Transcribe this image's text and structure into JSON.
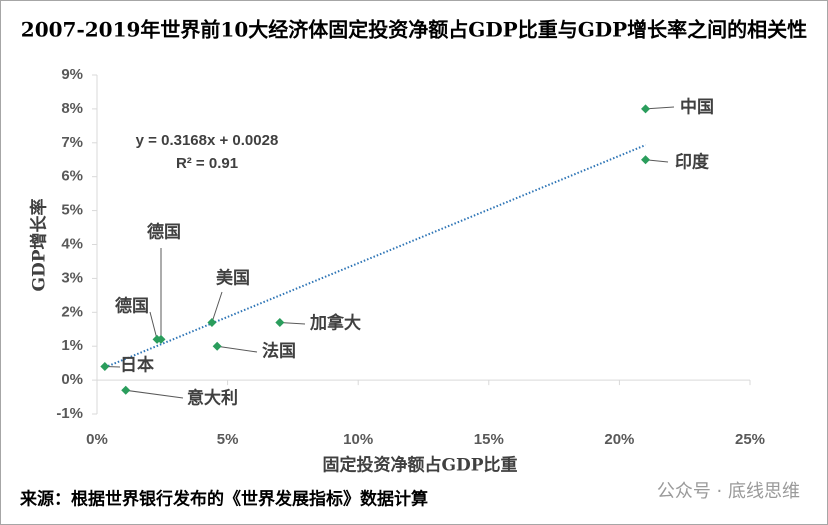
{
  "chart_data": {
    "type": "scatter",
    "title": "2007-2019年世界前10大经济体固定投资净额占GDP比重与GDP增长率之间的相关性",
    "x_label": "固定投资净额占GDP比重",
    "y_label": "GDP增长率",
    "source": "来源：根据世界银行发布的《世界发展指标》数据计算",
    "watermark": "公众号 · 底线思维",
    "color": "#2a9d5c",
    "point_labels": [
      "中国",
      "印度",
      "德国",
      "德国",
      "美国",
      "加拿大",
      "法国",
      "日本",
      "意大利"
    ],
    "x": [
      21.0,
      21.0,
      2.3,
      2.45,
      4.4,
      7.0,
      4.6,
      0.3,
      1.1
    ],
    "y": [
      8.0,
      6.5,
      1.2,
      1.2,
      1.7,
      1.7,
      1.0,
      0.4,
      -0.3
    ],
    "trendline": {
      "slope": 0.3168,
      "intercept": 0.28,
      "equation": "y = 0.3168x + 0.0028",
      "r2_label": "R² = 0.91",
      "color": "#2e75b6"
    },
    "xlim": [
      0,
      25
    ],
    "ylim": [
      -1,
      9
    ],
    "xticks": [
      {
        "value": 0,
        "label": "0%"
      },
      {
        "value": 5,
        "label": "5%"
      },
      {
        "value": 10,
        "label": "10%"
      },
      {
        "value": 15,
        "label": "15%"
      },
      {
        "value": 20,
        "label": "20%"
      },
      {
        "value": 25,
        "label": "25%"
      }
    ],
    "yticks": [
      {
        "value": -1,
        "label": "-1%"
      },
      {
        "value": 0,
        "label": "0%"
      },
      {
        "value": 1,
        "label": "1%"
      },
      {
        "value": 2,
        "label": "2%"
      },
      {
        "value": 3,
        "label": "3%"
      },
      {
        "value": 4,
        "label": "4%"
      },
      {
        "value": 5,
        "label": "5%"
      },
      {
        "value": 6,
        "label": "6%"
      },
      {
        "value": 7,
        "label": "7%"
      },
      {
        "value": 8,
        "label": "8%"
      },
      {
        "value": 9,
        "label": "9%"
      }
    ]
  }
}
